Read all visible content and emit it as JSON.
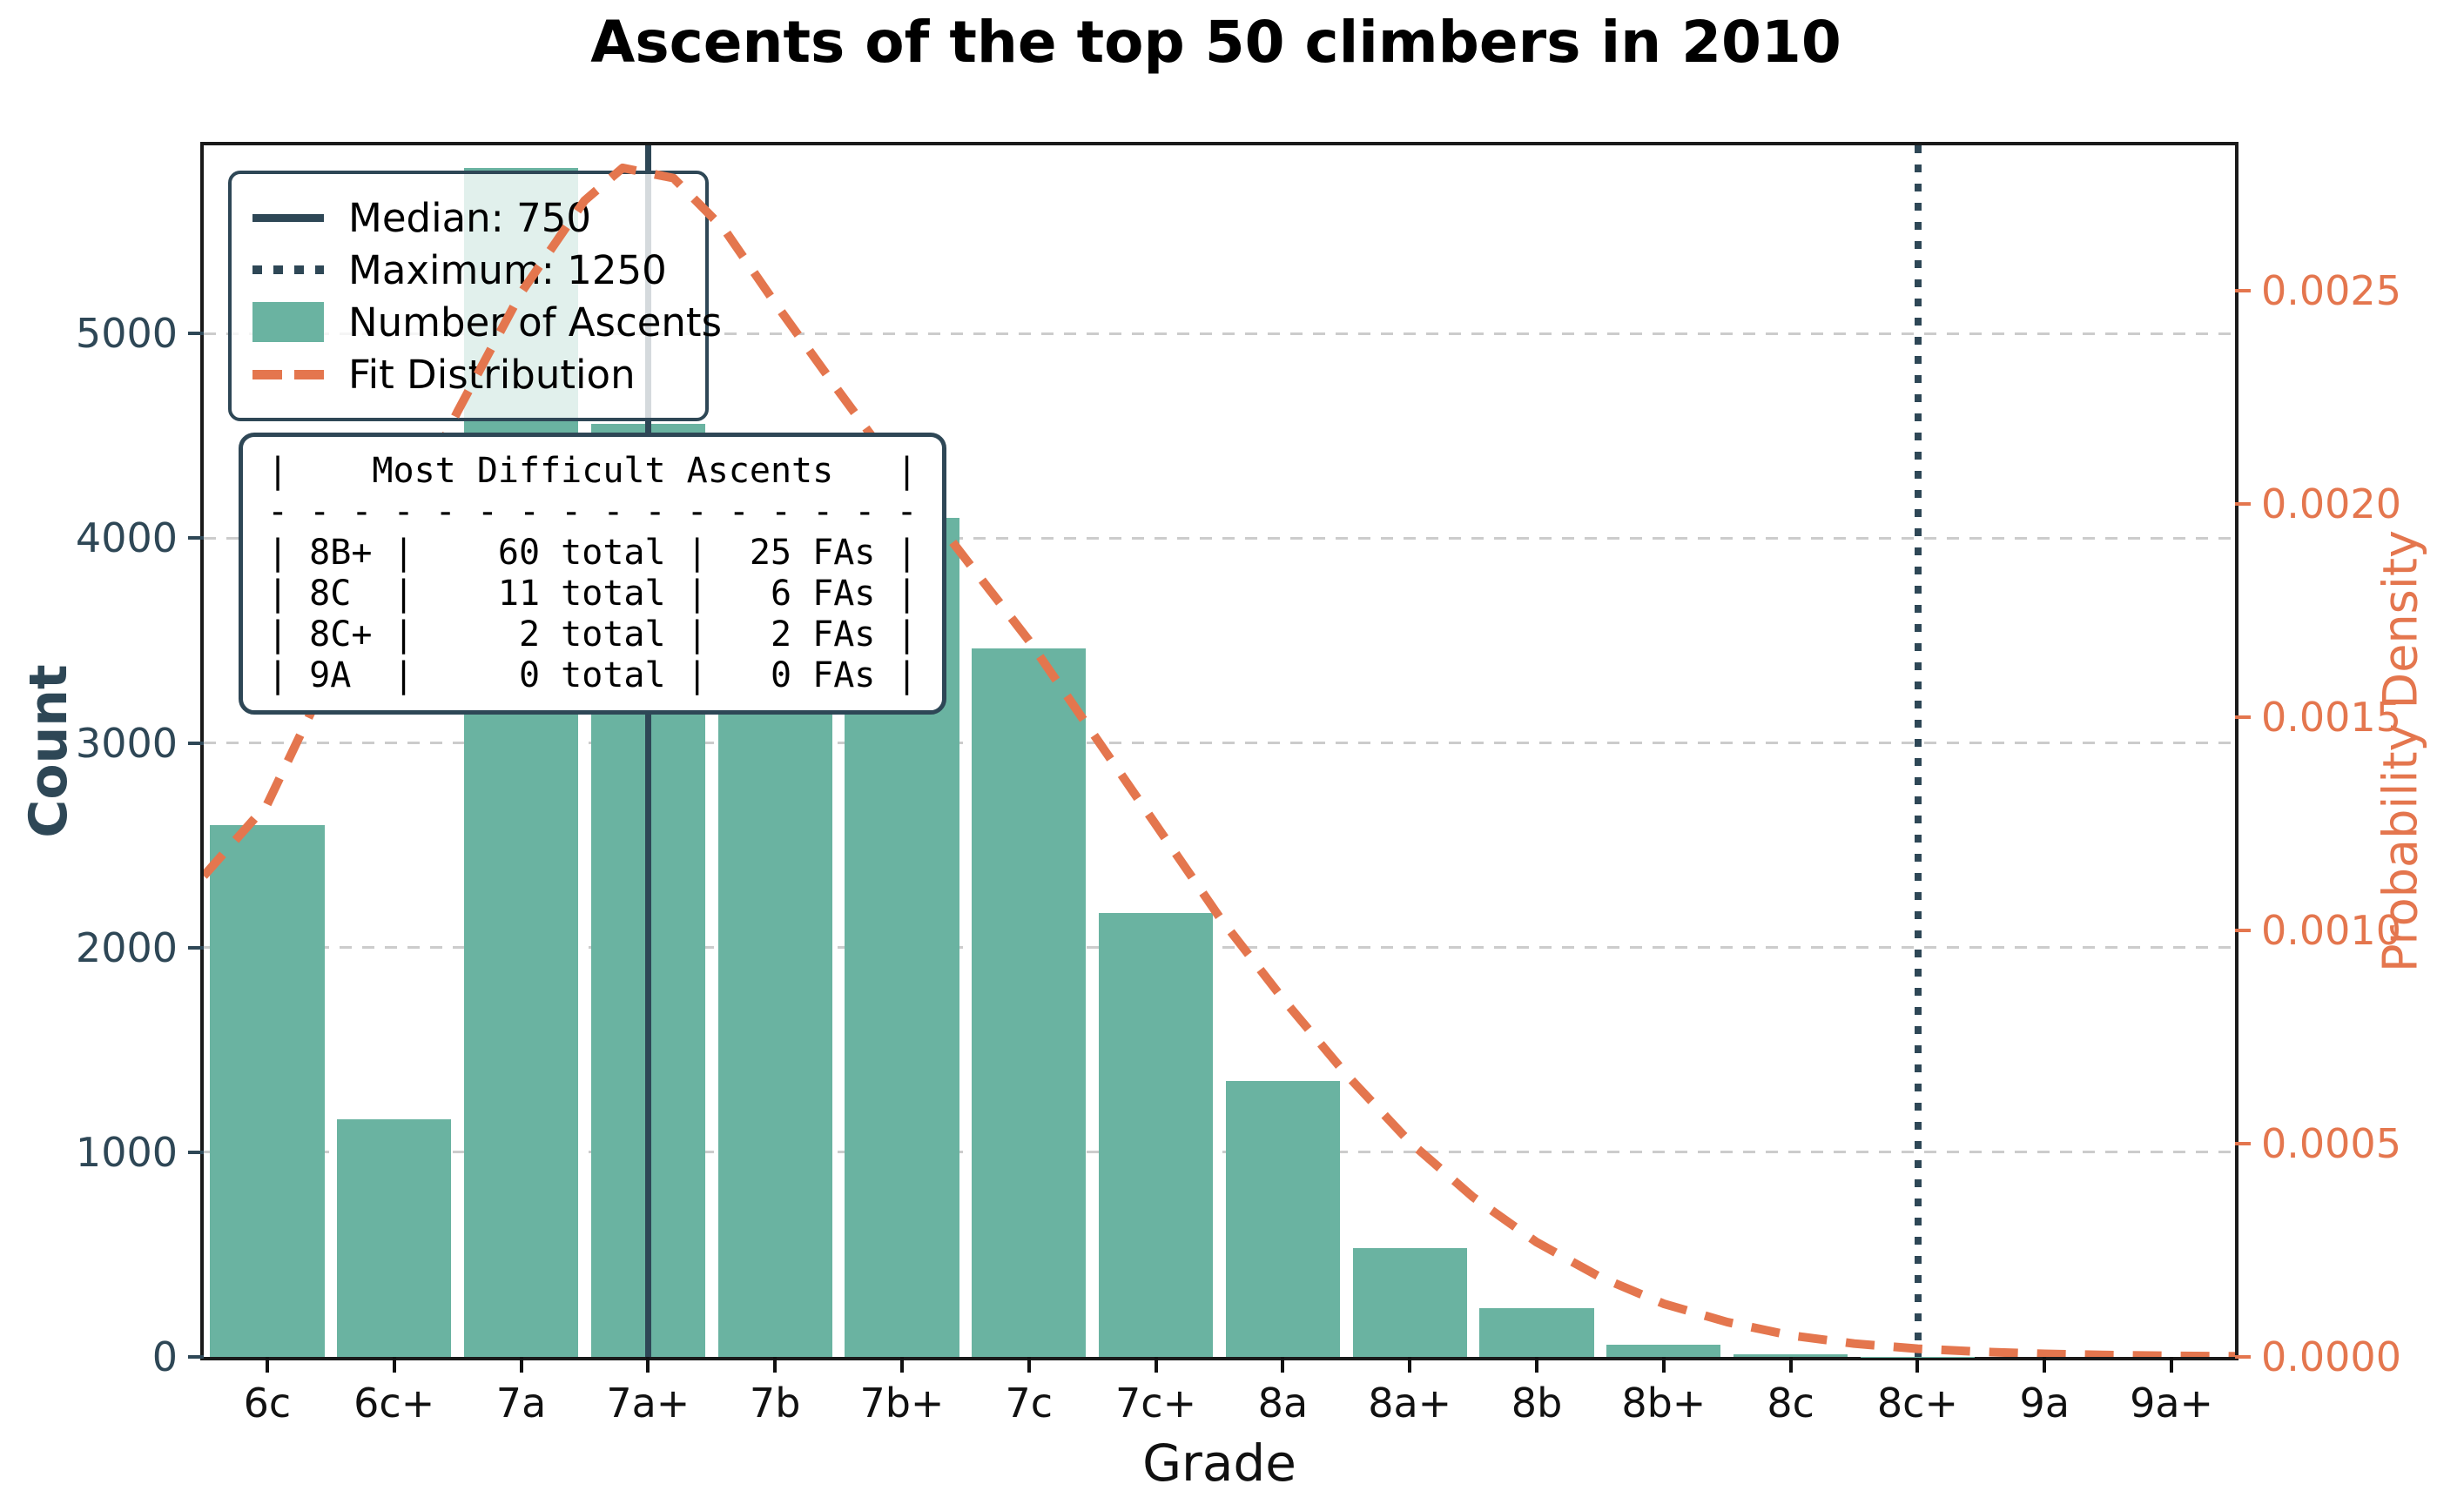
{
  "figure": {
    "title": "Ascents of the top 50 climbers in 2010"
  },
  "colors": {
    "bar_teal": "#6ab3a1",
    "dark_slate": "#2e4756",
    "fit_orange": "#e4764e",
    "grid_gray": "#cccccc",
    "spine_black": "#1a1a1a"
  },
  "chart_data": {
    "type": "bar",
    "subtype": "histogram with fitted distribution overlay",
    "title": "Ascents of the top 50 climbers in 2010",
    "xlabel": "Grade",
    "ylabel_left": "Count",
    "ylabel_right": "Probability Density",
    "categories": [
      "6c",
      "6c+",
      "7a",
      "7a+",
      "7b",
      "7b+",
      "7c",
      "7c+",
      "8a",
      "8a+",
      "8b",
      "8b+",
      "8c",
      "8c+",
      "9a",
      "9a+"
    ],
    "values": [
      2600,
      1160,
      5810,
      4560,
      4450,
      4100,
      3460,
      2170,
      1350,
      530,
      240,
      60,
      11,
      2,
      0,
      0
    ],
    "series_name": "Number of Ascents",
    "yticks_left": [
      0,
      1000,
      2000,
      3000,
      4000,
      5000
    ],
    "ylim_left": [
      0,
      5920
    ],
    "yticks_right": [
      "0.0000",
      "0.0005",
      "0.0010",
      "0.0015",
      "0.0020",
      "0.0025"
    ],
    "yticks_right_values": [
      0.0,
      0.0005,
      0.001,
      0.0015,
      0.002,
      0.0025
    ],
    "ylim_right": [
      0,
      0.00284
    ],
    "grid": "horizontal dashed",
    "legend_position": "upper left",
    "vlines": [
      {
        "name": "median",
        "label": "Median: 750",
        "value": 750,
        "at_category": "7a+",
        "at_index": 3,
        "style": "solid"
      },
      {
        "name": "maximum",
        "label": "Maximum: 1250",
        "value": 1250,
        "at_category": "8c+",
        "at_index": 13,
        "style": "dotted"
      }
    ],
    "fit_curve": {
      "name": "Fit Distribution",
      "x_index": [
        -0.5,
        0,
        0.5,
        1,
        1.5,
        2,
        2.5,
        2.8,
        3.2,
        3.6,
        4,
        4.5,
        5,
        5.5,
        6,
        6.5,
        7,
        7.5,
        8,
        8.5,
        9,
        9.5,
        10,
        10.5,
        11,
        11.5,
        12,
        12.5,
        13,
        13.5,
        14,
        14.5,
        15,
        15.5
      ],
      "count_scale_y": [
        2350,
        2700,
        3350,
        4000,
        4620,
        5200,
        5650,
        5810,
        5760,
        5510,
        5150,
        4720,
        4300,
        3900,
        3500,
        3050,
        2600,
        2150,
        1750,
        1380,
        1050,
        780,
        560,
        390,
        260,
        170,
        105,
        65,
        40,
        25,
        15,
        9,
        5,
        3
      ],
      "peak_density": 0.00279
    }
  },
  "legend": {
    "items": [
      {
        "label": "Median: 750",
        "swatch": "solid-line"
      },
      {
        "label": "Maximum: 1250",
        "swatch": "dotted-line"
      },
      {
        "label": "Number of Ascents",
        "swatch": "filled-patch"
      },
      {
        "label": "Fit Distribution",
        "swatch": "dashed-line"
      }
    ]
  },
  "overlay_table": {
    "title": "Most Difficult Ascents",
    "rows": [
      {
        "grade": "8B+",
        "total": 60,
        "fas": 25
      },
      {
        "grade": "8C",
        "total": 11,
        "fas": 6
      },
      {
        "grade": "8C+",
        "total": 2,
        "fas": 2
      },
      {
        "grade": "9A",
        "total": 0,
        "fas": 0
      }
    ],
    "lines": [
      "|    Most Difficult Ascents   |",
      "- - - - - - - - - - - - - - - -",
      "| 8B+ |    60 total |  25 FAs |",
      "| 8C  |    11 total |   6 FAs |",
      "| 8C+ |     2 total |   2 FAs |",
      "| 9A  |     0 total |   0 FAs |"
    ]
  }
}
